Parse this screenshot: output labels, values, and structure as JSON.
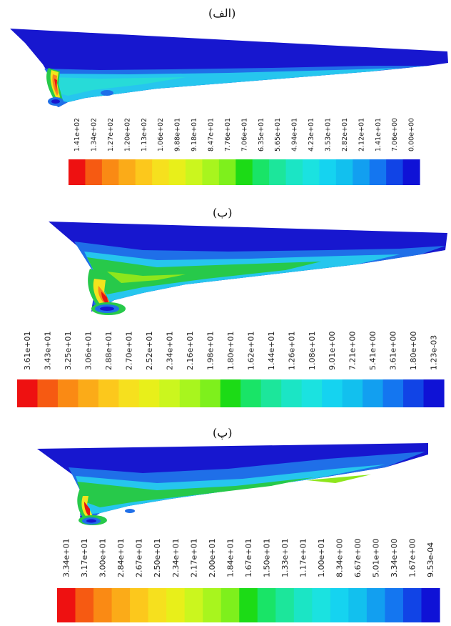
{
  "panels": [
    {
      "title": "(الف)",
      "labels": [
        "1.41e+02",
        "1.34e+02",
        "1.27e+02",
        "1.20e+02",
        "1.13e+02",
        "1.06e+02",
        "9.88e+01",
        "9.18e+01",
        "8.47e+01",
        "7.76e+01",
        "7.06e+01",
        "6.35e+01",
        "5.65e+01",
        "4.94e+01",
        "4.23e+01",
        "3.53e+01",
        "2.82e+01",
        "2.12e+01",
        "1.41e+01",
        "7.06e+00",
        "0.00e+00"
      ]
    },
    {
      "title": "(ب)",
      "labels": [
        "3.61e+01",
        "3.43e+01",
        "3.25e+01",
        "3.06e+01",
        "2.88e+01",
        "2.70e+01",
        "2.52e+01",
        "2.34e+01",
        "2.16e+01",
        "1.98e+01",
        "1.80e+01",
        "1.62e+01",
        "1.44e+01",
        "1.26e+01",
        "1.08e+01",
        "9.01e+00",
        "7.21e+00",
        "5.41e+00",
        "3.61e+00",
        "1.80e+00",
        "1.23e-03"
      ]
    },
    {
      "title": "(پ)",
      "labels": [
        "3.34e+01",
        "3.17e+01",
        "3.00e+01",
        "2.84e+01",
        "2.67e+01",
        "2.50e+01",
        "2.34e+01",
        "2.17e+01",
        "2.00e+01",
        "1.84e+01",
        "1.67e+01",
        "1.50e+01",
        "1.33e+01",
        "1.17e+01",
        "1.00e+01",
        "8.34e+00",
        "6.67e+00",
        "5.01e+00",
        "3.34e+00",
        "1.67e+00",
        "9.53e-04"
      ]
    }
  ],
  "colorbar_colors": [
    "#ee1111",
    "#f65a12",
    "#fa8a14",
    "#fbab18",
    "#fcc81c",
    "#f6e01e",
    "#e8ef1a",
    "#cbf61e",
    "#a8f51e",
    "#7ef01c",
    "#1cdb16",
    "#19e467",
    "#1ce69b",
    "#1be5c5",
    "#1be2e0",
    "#15d3f0",
    "#12c0ee",
    "#129ff0",
    "#1476f0",
    "#1144e6",
    "#0f12d6"
  ],
  "field_colors": {
    "background_blue": "#1717cf",
    "mid_blue": "#1f6fe8",
    "light_blue": "#1fb6ee",
    "cyan": "#26dbe8",
    "green": "#27c94a",
    "yellow": "#f2e41d",
    "orange": "#f7861b",
    "red": "#e51414"
  }
}
